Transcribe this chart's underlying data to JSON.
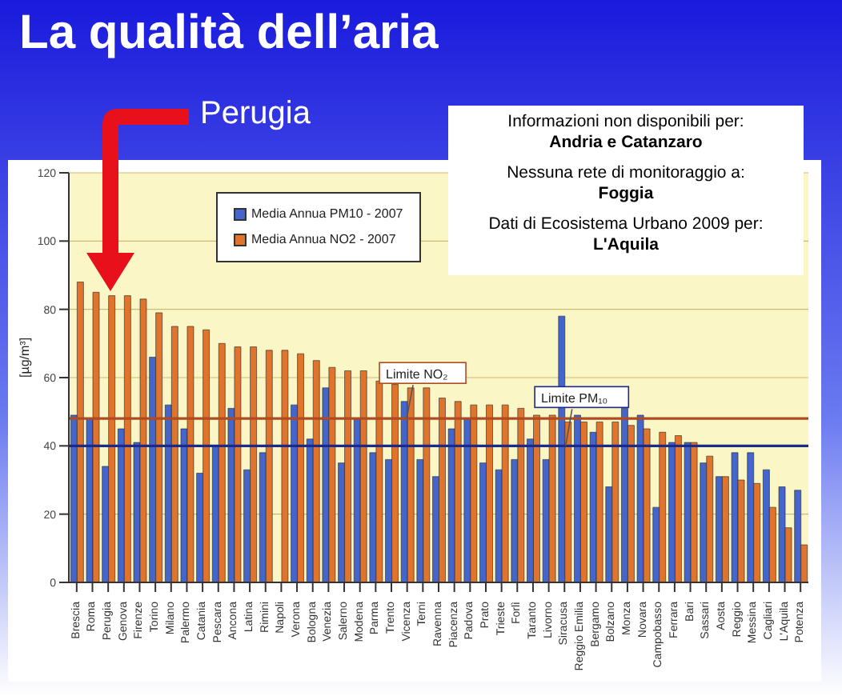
{
  "chart_data": {
    "type": "bar",
    "title": "La qualità dell’aria",
    "ylabel": "[µg/m³]",
    "categories": [
      "Brescia",
      "Roma",
      "Perugia",
      "Genova",
      "Firenze",
      "Torino",
      "Milano",
      "Palermo",
      "Catania",
      "Pescara",
      "Ancona",
      "Latina",
      "Rimini",
      "Napoli",
      "Verona",
      "Bologna",
      "Venezia",
      "Salerno",
      "Modena",
      "Parma",
      "Trento",
      "Vicenza",
      "Terni",
      "Ravenna",
      "Piacenza",
      "Padova",
      "Prato",
      "Trieste",
      "Forlì",
      "Taranto",
      "Livorno",
      "Siracusa",
      "Reggio Emilia",
      "Bergamo",
      "Bolzano",
      "Monza",
      "Novara",
      "Campobasso",
      "Ferrara",
      "Bari",
      "Sassari",
      "Aosta",
      "Reggio",
      "Messina",
      "Cagliari",
      "L'Aquila",
      "Potenza"
    ],
    "series": [
      {
        "name": "Media Annua PM10 - 2007",
        "color": "#4466cc",
        "values": [
          49,
          48,
          34,
          45,
          41,
          66,
          52,
          45,
          32,
          40,
          51,
          33,
          38,
          null,
          52,
          42,
          57,
          35,
          48,
          38,
          36,
          53,
          36,
          31,
          45,
          48,
          35,
          33,
          36,
          42,
          36,
          78,
          49,
          44,
          28,
          51,
          49,
          22,
          41,
          41,
          35,
          31,
          38,
          38,
          33,
          28,
          27
        ]
      },
      {
        "name": "Media Annua NO2 - 2007",
        "color": "#e0742c",
        "values": [
          88,
          85,
          84,
          84,
          83,
          79,
          75,
          75,
          74,
          70,
          69,
          69,
          68,
          68,
          67,
          65,
          63,
          62,
          62,
          59,
          58,
          57,
          57,
          54,
          53,
          52,
          52,
          52,
          51,
          49,
          49,
          47,
          47,
          47,
          47,
          46,
          45,
          44,
          43,
          41,
          37,
          31,
          30,
          29,
          22,
          16,
          11
        ]
      }
    ],
    "ylim": [
      0,
      120
    ],
    "yticks": [
      0,
      20,
      40,
      60,
      80,
      100,
      120
    ],
    "grid": "y",
    "legend": "top left",
    "ref_lines": [
      {
        "axis": "y",
        "value": 48,
        "label": "Limite NO₂",
        "color": "#b04a20"
      },
      {
        "axis": "y",
        "value": 40,
        "label": "Limite PM₁₀",
        "color": "#1a2a8a"
      }
    ],
    "annotations": [
      "Perugia",
      "Informazioni non disponibili per:",
      "Andria e Catanzaro",
      "Nessuna rete di monitoraggio a:",
      "Foggia",
      "Dati di Ecosistema Urbano 2009 per:",
      "L'Aquila"
    ]
  }
}
